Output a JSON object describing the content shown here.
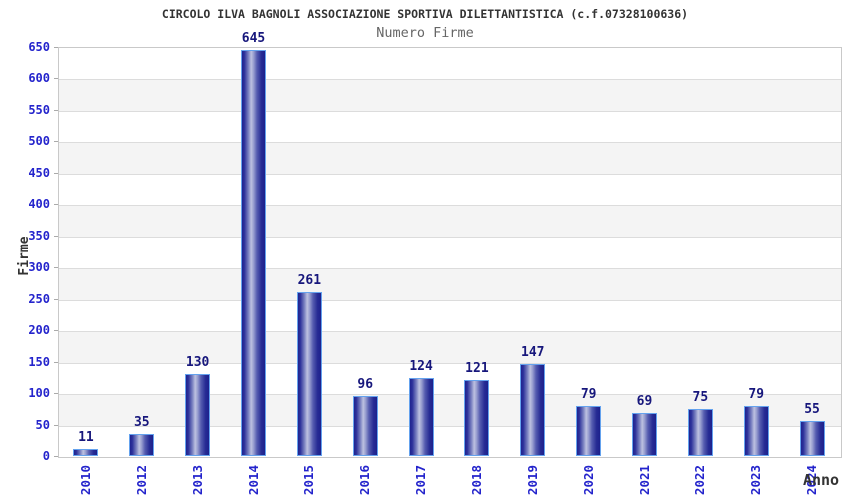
{
  "title": "CIRCOLO ILVA BAGNOLI ASSOCIAZIONE SPORTIVA DILETTANTISTICA (c.f.07328100636)",
  "subtitle": "Numero Firme",
  "chart_data": {
    "type": "bar",
    "title": "Numero Firme",
    "xlabel": "Anno",
    "ylabel": "Firme",
    "categories": [
      "2010",
      "2012",
      "2013",
      "2014",
      "2015",
      "2016",
      "2017",
      "2018",
      "2019",
      "2020",
      "2021",
      "2022",
      "2023",
      "2024"
    ],
    "values": [
      11,
      35,
      130,
      645,
      261,
      96,
      124,
      121,
      147,
      79,
      69,
      75,
      79,
      55
    ],
    "bar_value_labels": [
      "11",
      "35",
      "130",
      "645",
      "261",
      "96",
      "124",
      "121",
      "147",
      "79",
      "69",
      "75",
      "79",
      "55"
    ],
    "ylim": [
      0,
      650
    ],
    "ytick_step": 50,
    "yticks": [
      "0",
      "50",
      "100",
      "150",
      "200",
      "250",
      "300",
      "350",
      "400",
      "450",
      "500",
      "550",
      "600",
      "650"
    ],
    "grid": "horizontal",
    "legend": "none",
    "background_bands": "alternating gray/white every 50 units"
  },
  "colors": {
    "title": "#333333",
    "subtitle": "#666666",
    "tick_label_blue": "#2424cc",
    "value_label_navy": "#17177c",
    "axis_title": "#333333",
    "band_gray": "#f4f4f4",
    "band_white": "#ffffff",
    "gridline": "#dcdcdc",
    "plot_border": "#c9c9c9",
    "bar_border_lightblue": "#64a2ee",
    "bar_gradient": [
      "#1f2390 0%",
      "#2c319a 10%",
      "#7b82c1 28%",
      "#bcc1e0 40%",
      "#9aa0d0 50%",
      "#555cb0 65%",
      "#262b94 85%",
      "#1d218c 100%"
    ]
  }
}
